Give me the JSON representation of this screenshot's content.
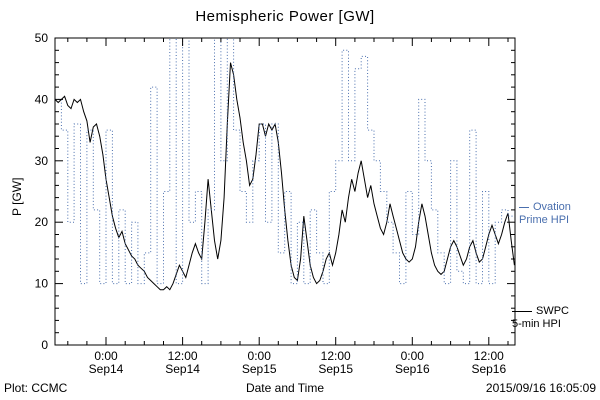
{
  "footer": {
    "left": "Plot: CCMC",
    "timestamp": "2015/09/16 16:05:09"
  },
  "legend": {
    "ovation": {
      "line1": "Ovation",
      "line2": "Prime HPI",
      "color": "#4a6fae"
    },
    "swpc": {
      "line1": "SWPC",
      "line2": "5-min HPI",
      "color": "#000000"
    }
  },
  "chart_data": {
    "type": "line",
    "title": "Hemispheric Power [GW]",
    "xlabel": "Date and Time",
    "ylabel": "P [GW]",
    "ylim": [
      0,
      50
    ],
    "y_ticks": [
      0,
      10,
      20,
      30,
      40,
      50
    ],
    "y_minor_tick": 2,
    "x_range_hours": [
      0,
      72.1
    ],
    "x_minor_tick_hours": 3,
    "x_ticks": [
      {
        "hours": 8,
        "time": "0:00",
        "date": "Sep14"
      },
      {
        "hours": 20,
        "time": "12:00",
        "date": "Sep14"
      },
      {
        "hours": 32,
        "time": "0:00",
        "date": "Sep15"
      },
      {
        "hours": 44,
        "time": "12:00",
        "date": "Sep15"
      },
      {
        "hours": 56,
        "time": "0:00",
        "date": "Sep16"
      },
      {
        "hours": 68,
        "time": "12:00",
        "date": "Sep16"
      }
    ],
    "grid": false,
    "legend_position": "right-outside",
    "series": [
      {
        "name": "SWPC 5-min HPI",
        "color": "#000000",
        "style": "solid",
        "step": false,
        "x_start": 0,
        "x_step": 0.5,
        "y": [
          40,
          39.5,
          40,
          40.5,
          39,
          38.5,
          40,
          39.5,
          40,
          38,
          36.5,
          33,
          35.5,
          36,
          34,
          31,
          27,
          24,
          21,
          19,
          17.5,
          18.5,
          16.5,
          15.5,
          14.5,
          14,
          13,
          12.5,
          12,
          11,
          10.5,
          10,
          9.5,
          9,
          9,
          9.5,
          9,
          10,
          11.5,
          13,
          12,
          11,
          13,
          15,
          16.5,
          15,
          14,
          20,
          27,
          22,
          17,
          14,
          17,
          24,
          36,
          46,
          44,
          40,
          37,
          33,
          30,
          26,
          27,
          31,
          36,
          36,
          34,
          36,
          35,
          36,
          33,
          28,
          22,
          17,
          13,
          11,
          10.5,
          14,
          21,
          17,
          13,
          11,
          10,
          10.5,
          12,
          14,
          15,
          13,
          15,
          18,
          22,
          20,
          24,
          27,
          25,
          28,
          30,
          27,
          24,
          26,
          23,
          21,
          19,
          18,
          20,
          23,
          21,
          19,
          17,
          15,
          14,
          13.5,
          14,
          16,
          20,
          23,
          21,
          18,
          15,
          13,
          12,
          11.5,
          12,
          14,
          16,
          17,
          16,
          14.5,
          13,
          14,
          16,
          17,
          15,
          13.5,
          14,
          16,
          18,
          19.5,
          18,
          16.5,
          18,
          20,
          21.5,
          17,
          13
        ]
      },
      {
        "name": "Ovation Prime HPI",
        "color": "#4a6fae",
        "style": "dotted",
        "step": true,
        "x_start": 0,
        "x_step": 1,
        "y": [
          40,
          35,
          20,
          36,
          10,
          35,
          22,
          10,
          35,
          10,
          22,
          10,
          20,
          10,
          15,
          42,
          10,
          25,
          50,
          10,
          50,
          20,
          25,
          10,
          22,
          50,
          30,
          50,
          35,
          25,
          20,
          30,
          36,
          20,
          36,
          15,
          25,
          10,
          20,
          10,
          22,
          15,
          10,
          25,
          30,
          48,
          30,
          45,
          47,
          35,
          30,
          25,
          20,
          15,
          10,
          25,
          18,
          40,
          30,
          22,
          15,
          10,
          30,
          12,
          10,
          35,
          10,
          25,
          10,
          20,
          22,
          21
        ]
      }
    ]
  }
}
